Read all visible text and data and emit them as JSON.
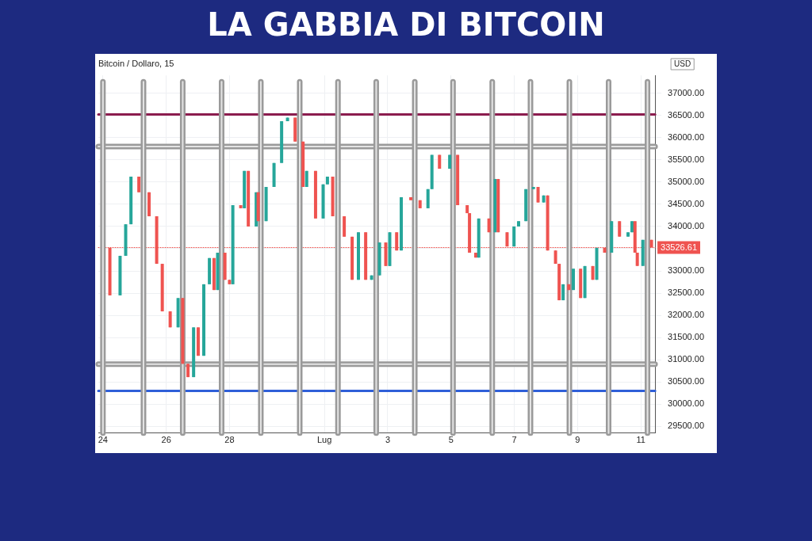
{
  "chart_data": {
    "type": "candlestick",
    "title": "LA GABBIA DI BITCOIN",
    "subtitle": "Bitcoin / Dollaro, 15",
    "ylabel": "USD",
    "x": [
      "--06-24T05:15",
      "--06-24T13:00",
      "--06-24T17:15",
      "--06-24T21:15",
      "--06-25T03:15",
      "--06-25T11:00",
      "--06-25T16:45",
      "--06-25T21:00",
      "--06-26T03:00",
      "--06-26T09:00",
      "--06-26T12:30",
      "--06-26T16:30",
      "--06-26T20:45",
      "--06-27T00:15",
      "--06-27T04:30",
      "--06-27T08:45",
      "--06-27T12:15",
      "--06-27T15:00",
      "--06-27T20:30",
      "--06-28T00:00",
      "--06-28T02:30",
      "--06-28T08:30",
      "--06-28T11:15",
      "--06-28T14:15",
      "--06-28T20:15",
      "--06-28T21:45",
      "--06-29T03:45",
      "--06-29T09:45",
      "--06-29T15:30",
      "--06-29T20:00",
      "--06-30T01:45",
      "--06-30T07:45",
      "--06-30T10:30",
      "--06-30T17:15",
      "--06-30T23:00",
      "--07-01T02:15",
      "--07-01T06:15",
      "--07-01T15:00",
      "--07-01T21:00",
      "--07-02T01:45",
      "--07-02T07:15",
      "--07-02T11:45",
      "--07-02T17:45",
      "--07-02T22:30",
      "--07-03T01:30",
      "--07-03T06:45",
      "--07-03T10:15",
      "--07-03T17:30",
      "--07-04T00:30",
      "--07-04T06:30",
      "--07-04T09:30",
      "--07-04T15:15",
      "--07-04T23:00",
      "--07-05T05:00",
      "--07-05T12:15",
      "--07-05T14:00",
      "--07-05T18:45",
      "--07-05T21:00",
      "--07-06T04:45",
      "--07-06T09:30",
      "--07-06T11:45",
      "--07-06T18:30",
      "--07-06T23:45",
      "--07-07T03:15",
      "--07-07T08:45",
      "--07-07T14:30",
      "--07-07T18:00",
      "--07-07T22:15",
      "--07-08T01:15",
      "--07-08T07:15",
      "--07-08T10:00",
      "--07-08T13:00",
      "--07-08T17:15",
      "--07-08T20:45",
      "--07-09T02:15",
      "--07-09T05:30",
      "--07-09T11:30",
      "--07-09T14:30",
      "--07-09T20:30",
      "--07-10T01:45",
      "--07-10T07:45",
      "--07-10T14:15",
      "--07-10T17:15",
      "--07-10T19:30",
      "--07-10T21:15",
      "--07-11T01:30",
      "--07-11T08:00"
    ],
    "ohlc": [
      [
        33520,
        33520,
        32450,
        32450
      ],
      [
        32450,
        33340,
        32450,
        33340
      ],
      [
        33340,
        34050,
        33340,
        34050
      ],
      [
        34050,
        35120,
        34050,
        35120
      ],
      [
        35120,
        35120,
        34770,
        34770
      ],
      [
        34770,
        34770,
        34230,
        34230
      ],
      [
        34230,
        34230,
        33160,
        33160
      ],
      [
        33160,
        33160,
        32090,
        32090
      ],
      [
        32090,
        32090,
        31730,
        31730
      ],
      [
        31730,
        32390,
        31730,
        32390
      ],
      [
        32390,
        32390,
        30910,
        30910
      ],
      [
        30910,
        30910,
        30610,
        30610
      ],
      [
        30610,
        31730,
        30610,
        31730
      ],
      [
        31730,
        31730,
        31090,
        31090
      ],
      [
        31090,
        32700,
        31090,
        32700
      ],
      [
        32700,
        33290,
        32700,
        33290
      ],
      [
        33290,
        33290,
        32570,
        32570
      ],
      [
        32570,
        33410,
        32570,
        33410
      ],
      [
        33410,
        33410,
        32800,
        32800
      ],
      [
        32800,
        32800,
        32700,
        32700
      ],
      [
        32700,
        34480,
        32700,
        34480
      ],
      [
        34480,
        34480,
        34410,
        34410
      ],
      [
        34410,
        35250,
        34410,
        35250
      ],
      [
        35250,
        35250,
        34000,
        34000
      ],
      [
        34000,
        34770,
        34000,
        34770
      ],
      [
        34770,
        34770,
        34120,
        34120
      ],
      [
        34120,
        34890,
        34120,
        34890
      ],
      [
        34890,
        35430,
        34890,
        35430
      ],
      [
        35430,
        36370,
        35430,
        36370
      ],
      [
        36370,
        36450,
        36370,
        36450
      ],
      [
        36450,
        36450,
        35910,
        35910
      ],
      [
        35910,
        35910,
        34890,
        34890
      ],
      [
        34890,
        35250,
        34890,
        35250
      ],
      [
        35250,
        35250,
        34180,
        34180
      ],
      [
        34180,
        34950,
        34180,
        34950
      ],
      [
        34950,
        35120,
        34950,
        35120
      ],
      [
        35120,
        35120,
        34230,
        34230
      ],
      [
        34230,
        34230,
        33770,
        33770
      ],
      [
        33770,
        33770,
        32800,
        32800
      ],
      [
        32800,
        33870,
        32800,
        33870
      ],
      [
        33870,
        33870,
        32800,
        32800
      ],
      [
        32800,
        32900,
        32800,
        32900
      ],
      [
        32900,
        33640,
        32900,
        33640
      ],
      [
        33640,
        33640,
        33110,
        33110
      ],
      [
        33110,
        33870,
        33110,
        33870
      ],
      [
        33870,
        33870,
        33460,
        33460
      ],
      [
        33460,
        34660,
        33460,
        34660
      ],
      [
        34660,
        34660,
        34590,
        34590
      ],
      [
        34590,
        34590,
        34410,
        34410
      ],
      [
        34410,
        34840,
        34410,
        34840
      ],
      [
        34840,
        35610,
        34840,
        35610
      ],
      [
        35610,
        35610,
        35300,
        35300
      ],
      [
        35300,
        35610,
        35300,
        35610
      ],
      [
        35610,
        35610,
        34480,
        34480
      ],
      [
        34480,
        34480,
        34300,
        34300
      ],
      [
        34300,
        34300,
        33410,
        33410
      ],
      [
        33410,
        33410,
        33300,
        33300
      ],
      [
        33300,
        34180,
        33300,
        34180
      ],
      [
        34180,
        34180,
        33870,
        33870
      ],
      [
        33870,
        35070,
        33870,
        35070
      ],
      [
        35070,
        35070,
        33870,
        33870
      ],
      [
        33870,
        33870,
        33550,
        33550
      ],
      [
        33550,
        34000,
        33550,
        34000
      ],
      [
        34000,
        34120,
        34000,
        34120
      ],
      [
        34120,
        34840,
        34120,
        34840
      ],
      [
        34840,
        34890,
        34840,
        34890
      ],
      [
        34890,
        34890,
        34540,
        34540
      ],
      [
        34540,
        34700,
        34540,
        34700
      ],
      [
        34700,
        34700,
        33460,
        33460
      ],
      [
        33460,
        33460,
        33160,
        33160
      ],
      [
        33160,
        33160,
        32340,
        32340
      ],
      [
        32340,
        32700,
        32340,
        32700
      ],
      [
        32700,
        32700,
        32570,
        32570
      ],
      [
        32570,
        33050,
        32570,
        33050
      ],
      [
        33050,
        33050,
        32390,
        32390
      ],
      [
        32390,
        33110,
        32390,
        33110
      ],
      [
        33110,
        33110,
        32800,
        32800
      ],
      [
        32800,
        33520,
        32800,
        33520
      ],
      [
        33520,
        33520,
        33410,
        33410
      ],
      [
        33410,
        34120,
        33410,
        34120
      ],
      [
        34120,
        34120,
        33770,
        33770
      ],
      [
        33770,
        33870,
        33770,
        33870
      ],
      [
        33870,
        34120,
        33870,
        34120
      ],
      [
        34120,
        34120,
        33410,
        33410
      ],
      [
        33410,
        33410,
        33110,
        33110
      ],
      [
        33110,
        33700,
        33110,
        33700
      ],
      [
        33700,
        33700,
        33530,
        33530
      ]
    ],
    "xlim": [
      "--06-23T20:30",
      "--07-11T10:45"
    ],
    "xticks": [
      {
        "value": "--06-24",
        "label": "24"
      },
      {
        "value": "--06-26",
        "label": "26"
      },
      {
        "value": "--06-28",
        "label": "28"
      },
      {
        "value": "--07-01",
        "label": "Lug"
      },
      {
        "value": "--07-03",
        "label": "3"
      },
      {
        "value": "--07-05",
        "label": "5"
      },
      {
        "value": "--07-07",
        "label": "7"
      },
      {
        "value": "--07-09",
        "label": "9"
      },
      {
        "value": "--07-11",
        "label": "11"
      }
    ],
    "ylim": [
      29350,
      37400
    ],
    "yticks": [
      {
        "value": 29500,
        "label": "29500.00"
      },
      {
        "value": 30000,
        "label": "30000.00"
      },
      {
        "value": 30500,
        "label": "30500.00"
      },
      {
        "value": 31000,
        "label": "31000.00"
      },
      {
        "value": 31500,
        "label": "31500.00"
      },
      {
        "value": 32000,
        "label": "32000.00"
      },
      {
        "value": 32500,
        "label": "32500.00"
      },
      {
        "value": 33000,
        "label": "33000.00"
      },
      {
        "value": 33500,
        "label": null
      },
      {
        "value": 34000,
        "label": "34000.00"
      },
      {
        "value": 34500,
        "label": "34500.00"
      },
      {
        "value": 35000,
        "label": "35000.00"
      },
      {
        "value": 35500,
        "label": "35500.00"
      },
      {
        "value": 36000,
        "label": "36000.00"
      },
      {
        "value": 36500,
        "label": "36500.00"
      },
      {
        "value": 37000,
        "label": "37000.00"
      }
    ],
    "grid": true,
    "ref_lines": [
      {
        "axis": "y",
        "value": 36520,
        "color": "#8b1c4e"
      },
      {
        "axis": "y",
        "value": 35800,
        "color": "#9a9a9a"
      },
      {
        "axis": "y",
        "value": 30900,
        "color": "#9a9a9a"
      },
      {
        "axis": "y",
        "value": 30300,
        "color": "#2f5fd8"
      },
      {
        "axis": "y",
        "value": 33526.61,
        "label": "33526.61",
        "color": "#ef5350",
        "line_style": "dotted"
      },
      {
        "axis": "x",
        "value": "--06-24",
        "color": "#9a9a9a"
      },
      {
        "axis": "x",
        "value": "--06-25T06:45",
        "color": "#9a9a9a"
      },
      {
        "axis": "x",
        "value": "--06-26T12:30",
        "color": "#9a9a9a"
      },
      {
        "axis": "x",
        "value": "--06-27T18:00",
        "color": "#9a9a9a"
      },
      {
        "axis": "x",
        "value": "--06-28T23:45",
        "color": "#9a9a9a"
      },
      {
        "axis": "x",
        "value": "--06-30T05:15",
        "color": "#9a9a9a"
      },
      {
        "axis": "x",
        "value": "--07-01T10:15",
        "color": "#9a9a9a"
      },
      {
        "axis": "x",
        "value": "--07-02T15:15",
        "color": "#9a9a9a"
      },
      {
        "axis": "x",
        "value": "--07-03T20:30",
        "color": "#9a9a9a"
      },
      {
        "axis": "x",
        "value": "--07-05T01:30",
        "color": "#9a9a9a"
      },
      {
        "axis": "x",
        "value": "--07-06T07:15",
        "color": "#9a9a9a"
      },
      {
        "axis": "x",
        "value": "--07-07T12:15",
        "color": "#9a9a9a"
      },
      {
        "axis": "x",
        "value": "--07-08T17:45",
        "color": "#9a9a9a"
      },
      {
        "axis": "x",
        "value": "--07-09T23:30",
        "color": "#9a9a9a"
      },
      {
        "axis": "x",
        "value": "--07-11T05:00",
        "color": "#9a9a9a"
      }
    ]
  }
}
